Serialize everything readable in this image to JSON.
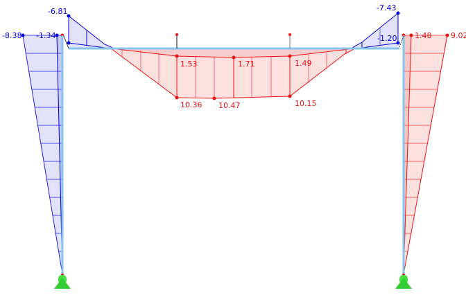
{
  "colors": {
    "negative": "#0000e0",
    "negative_fill": "#e2e2fa",
    "positive": "#ee1111",
    "positive_fill": "#fbe0e0",
    "member": "#88c4ec",
    "support": "#33cc33"
  },
  "labels": {
    "left_col_outer": "-8.38",
    "left_col_inner": "-1.34",
    "left_haunch_top": "-6.81",
    "beam_inner_1": "1.53",
    "beam_inner_2": "1.71",
    "beam_inner_3": "1.49",
    "beam_outer_1": "10.36",
    "beam_outer_2": "10.47",
    "beam_outer_3": "10.15",
    "right_haunch_top": "-7.43",
    "right_haunch_inner": "-1.20",
    "right_col_inner": "1.48",
    "right_col_outer": "9.02"
  }
}
